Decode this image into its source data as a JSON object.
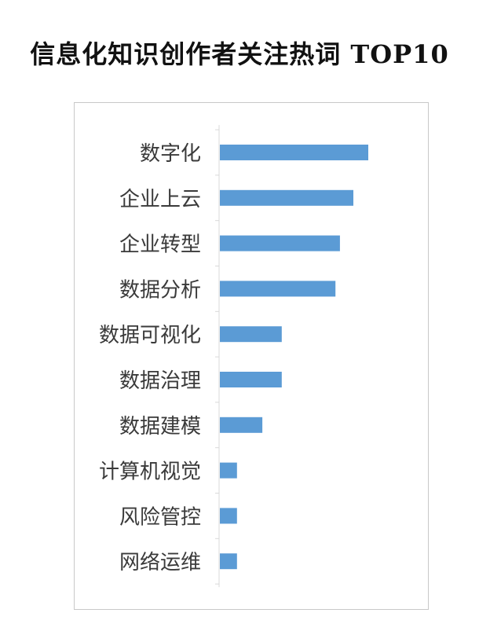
{
  "title": "信息化知识创作者关注热词 TOP10",
  "chart_data": {
    "type": "bar",
    "orientation": "horizontal",
    "title": "信息化知识创作者关注热词 TOP10",
    "categories": [
      "数字化",
      "企业上云",
      "企业转型",
      "数据分析",
      "数据可视化",
      "数据治理",
      "数据建模",
      "计算机视觉",
      "风险管控",
      "网络运维"
    ],
    "values": [
      100,
      90,
      81,
      78,
      42,
      42,
      29,
      12,
      12,
      12
    ],
    "xlim": [
      0,
      100
    ],
    "grid": false,
    "legend": "none",
    "bar_color": "#5B9BD5",
    "axis_color": "#d9d9d9",
    "label_color": "#3a3a3a"
  }
}
